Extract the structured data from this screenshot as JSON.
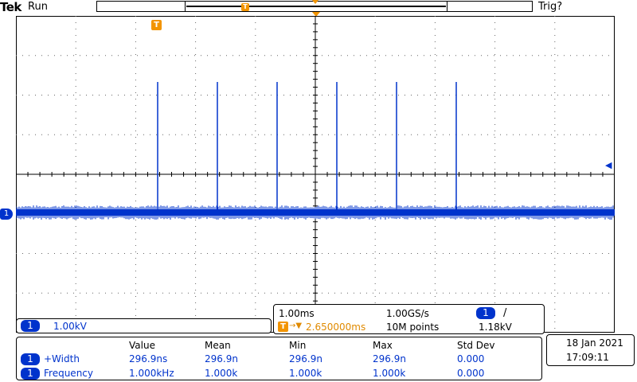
{
  "header": {
    "brand": "Tek",
    "run_state": "Run",
    "trigger_status": "Trig?",
    "trigger_marker_label": "T"
  },
  "waveform": {
    "channel_marker": "1",
    "trigger_level_marker": "◀",
    "pulse_count": 6
  },
  "channel_box": {
    "channel": "1",
    "scale": "1.00kV"
  },
  "timebase": {
    "horizontal_scale": "1.00ms",
    "sample_rate": "1.00GS/s",
    "trigger_channel": "1",
    "trigger_slope": "/",
    "trigger_position_icon": "T",
    "trigger_arrow": "→▼",
    "trigger_position": "2.650000ms",
    "record_length": "10M points",
    "trigger_level": "1.18kV"
  },
  "measurements": {
    "headers": [
      "Value",
      "Mean",
      "Min",
      "Max",
      "Std Dev"
    ],
    "rows": [
      {
        "channel": "1",
        "name": "+Width",
        "value": "296.9ns",
        "mean": "296.9n",
        "min": "296.9n",
        "max": "296.9n",
        "std": "0.000"
      },
      {
        "channel": "1",
        "name": "Frequency",
        "value": "1.000kHz",
        "mean": "1.000k",
        "min": "1.000k",
        "max": "1.000k",
        "std": "0.000"
      }
    ]
  },
  "datetime": {
    "date": "18 Jan  2021",
    "time": "17:09:11"
  },
  "colors": {
    "channel1": "#0033cc",
    "trigger": "#f29400"
  }
}
